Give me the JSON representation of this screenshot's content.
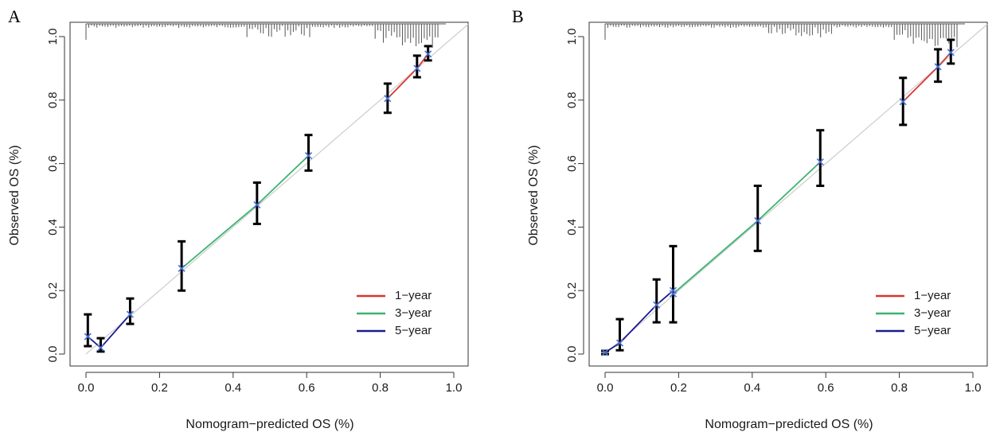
{
  "figure": {
    "panels": [
      "A",
      "B"
    ]
  },
  "colors": {
    "one_year": "#d7372f",
    "three_year": "#3cb371",
    "five_year": "#1a1a8c",
    "cross": "#4a6fd4",
    "ideal_line": "#d0d0d0",
    "error_bar": "#000000",
    "rug": "#555555",
    "axis": "#333333"
  },
  "chart_data": [
    {
      "panel": "A",
      "type": "line",
      "title": "",
      "xlabel": "Nomogram−predicted OS (%)",
      "ylabel": "Observed OS (%)",
      "xlim": [
        0,
        1
      ],
      "ylim": [
        0,
        1
      ],
      "xticks": [
        0.0,
        0.2,
        0.4,
        0.6,
        0.8,
        1.0
      ],
      "yticks": [
        0.0,
        0.2,
        0.4,
        0.6,
        0.8,
        1.0
      ],
      "xtick_labels": [
        "0.0",
        "0.2",
        "0.4",
        "0.6",
        "0.8",
        "1.0"
      ],
      "ytick_labels": [
        "0.0",
        "0.2",
        "0.4",
        "0.6",
        "0.8",
        "1.0"
      ],
      "legend_position": "bottom-right",
      "legend": [
        {
          "label": "1−year",
          "series": "one_year"
        },
        {
          "label": "3−year",
          "series": "three_year"
        },
        {
          "label": "5−year",
          "series": "five_year"
        }
      ],
      "series": [
        {
          "name": "1-year",
          "key": "one_year",
          "x": [
            0.82,
            0.9,
            0.93
          ],
          "y": [
            0.805,
            0.9,
            0.945
          ]
        },
        {
          "name": "3-year",
          "key": "three_year",
          "x": [
            0.26,
            0.465,
            0.605
          ],
          "y": [
            0.27,
            0.47,
            0.625
          ]
        },
        {
          "name": "5-year",
          "key": "five_year",
          "x": [
            0.005,
            0.04,
            0.12
          ],
          "y": [
            0.055,
            0.02,
            0.125
          ]
        }
      ],
      "error_bars": [
        {
          "x": 0.005,
          "y": 0.055,
          "low": 0.025,
          "high": 0.125
        },
        {
          "x": 0.04,
          "y": 0.02,
          "low": 0.008,
          "high": 0.05
        },
        {
          "x": 0.12,
          "y": 0.125,
          "low": 0.095,
          "high": 0.175
        },
        {
          "x": 0.26,
          "y": 0.27,
          "low": 0.2,
          "high": 0.355
        },
        {
          "x": 0.465,
          "y": 0.47,
          "low": 0.41,
          "high": 0.54
        },
        {
          "x": 0.605,
          "y": 0.625,
          "low": 0.578,
          "high": 0.69
        },
        {
          "x": 0.82,
          "y": 0.805,
          "low": 0.76,
          "high": 0.852
        },
        {
          "x": 0.9,
          "y": 0.9,
          "low": 0.872,
          "high": 0.94
        },
        {
          "x": 0.93,
          "y": 0.945,
          "low": 0.925,
          "high": 0.97
        }
      ]
    },
    {
      "panel": "B",
      "type": "line",
      "title": "",
      "xlabel": "Nomogram−predicted OS (%)",
      "ylabel": "Observed OS (%)",
      "xlim": [
        0,
        1
      ],
      "ylim": [
        0,
        1
      ],
      "xticks": [
        0.0,
        0.2,
        0.4,
        0.6,
        0.8,
        1.0
      ],
      "yticks": [
        0.0,
        0.2,
        0.4,
        0.6,
        0.8,
        1.0
      ],
      "xtick_labels": [
        "0.0",
        "0.2",
        "0.4",
        "0.6",
        "0.8",
        "1.0"
      ],
      "ytick_labels": [
        "0.0",
        "0.2",
        "0.4",
        "0.6",
        "0.8",
        "1.0"
      ],
      "legend_position": "bottom-right",
      "legend": [
        {
          "label": "1−year",
          "series": "one_year"
        },
        {
          "label": "3−year",
          "series": "three_year"
        },
        {
          "label": "5−year",
          "series": "five_year"
        }
      ],
      "series": [
        {
          "name": "1-year",
          "key": "one_year",
          "x": [
            0.81,
            0.905,
            0.94
          ],
          "y": [
            0.795,
            0.905,
            0.95
          ]
        },
        {
          "name": "3-year",
          "key": "three_year",
          "x": [
            0.185,
            0.415,
            0.585
          ],
          "y": [
            0.19,
            0.42,
            0.605
          ]
        },
        {
          "name": "5-year",
          "key": "five_year",
          "x": [
            0.0,
            0.04,
            0.14,
            0.185
          ],
          "y": [
            0.005,
            0.035,
            0.155,
            0.2
          ]
        }
      ],
      "error_bars": [
        {
          "x": 0.0,
          "y": 0.005,
          "low": 0.0,
          "high": 0.01
        },
        {
          "x": 0.04,
          "y": 0.035,
          "low": 0.012,
          "high": 0.11
        },
        {
          "x": 0.14,
          "y": 0.155,
          "low": 0.1,
          "high": 0.235
        },
        {
          "x": 0.185,
          "y": 0.2,
          "low": 0.1,
          "high": 0.34
        },
        {
          "x": 0.415,
          "y": 0.42,
          "low": 0.325,
          "high": 0.53
        },
        {
          "x": 0.585,
          "y": 0.605,
          "low": 0.53,
          "high": 0.705
        },
        {
          "x": 0.81,
          "y": 0.795,
          "low": 0.722,
          "high": 0.87
        },
        {
          "x": 0.905,
          "y": 0.905,
          "low": 0.858,
          "high": 0.96
        },
        {
          "x": 0.94,
          "y": 0.95,
          "low": 0.915,
          "high": 0.99
        }
      ]
    }
  ]
}
